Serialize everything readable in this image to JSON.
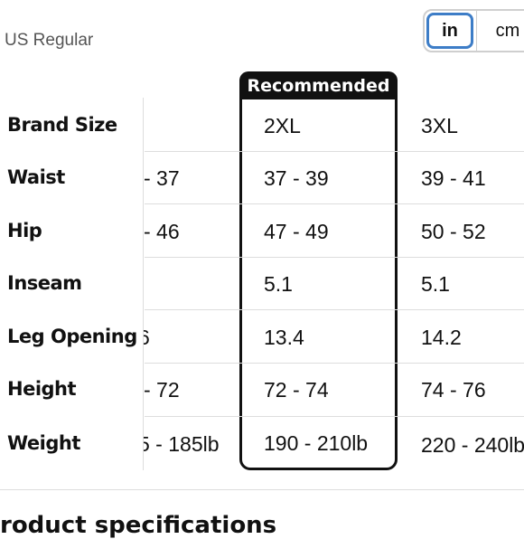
{
  "title": "US Regular",
  "unit_toggle": {
    "in_label": "in",
    "cm_label": "cm",
    "selected": "in"
  },
  "recommended_label": "Recommended",
  "row_labels": [
    "Brand Size",
    "Waist",
    "Hip",
    "Inseam",
    "Leg Opening",
    "Height",
    "Weight"
  ],
  "columns": [
    {
      "values": [
        "",
        "- 37",
        "- 46",
        "",
        "6",
        "- 72",
        "5 - 185lb"
      ]
    },
    {
      "values": [
        "2XL",
        "37 - 39",
        "47 - 49",
        "5.1",
        "13.4",
        "72 - 74",
        "190 - 210lb"
      ]
    },
    {
      "values": [
        "3XL",
        "39 - 41",
        "50 - 52",
        "5.1",
        "14.2",
        "74 - 76",
        "220 - 240lb"
      ]
    }
  ],
  "section_heading": "roduct specifications",
  "colors": {
    "accent": "#3d7dc7",
    "recommended_bg": "#111111"
  }
}
